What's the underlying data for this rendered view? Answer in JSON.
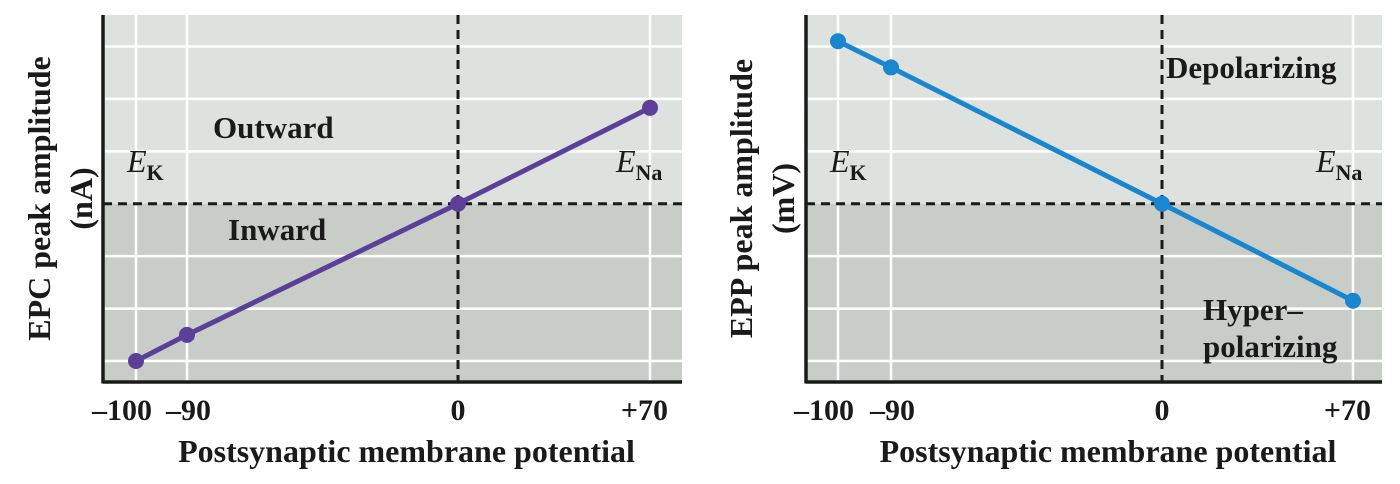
{
  "chart_data": [
    {
      "type": "line",
      "panel": "left",
      "xlabel": "Postsynaptic membrane potential",
      "ylabel_line1": "EPC peak amplitude",
      "ylabel_line2": "(nA)",
      "x_ticks": [
        {
          "value": -100,
          "label": "–100"
        },
        {
          "value": -90,
          "label": "–90"
        },
        {
          "value": 0,
          "label": "0"
        },
        {
          "value": 70,
          "label": "+70"
        }
      ],
      "ylim": [
        -3.4,
        3.6
      ],
      "grid": true,
      "series": [
        {
          "name": "EPC",
          "color": "#5b3f99",
          "x": [
            -100,
            -90,
            0,
            70
          ],
          "y": [
            -3.0,
            -2.5,
            0,
            1.83
          ]
        }
      ],
      "regions": {
        "upper_label": "Outward",
        "lower_label": "Inward"
      },
      "reversal_left": {
        "main": "E",
        "sub": "K"
      },
      "reversal_right": {
        "main": "E",
        "sub": "Na"
      }
    },
    {
      "type": "line",
      "panel": "right",
      "xlabel": "Postsynaptic membrane potential",
      "ylabel_line1": "EPP peak amplitude",
      "ylabel_line2": "(mV)",
      "x_ticks": [
        {
          "value": -100,
          "label": "–100"
        },
        {
          "value": -90,
          "label": "–90"
        },
        {
          "value": 0,
          "label": "0"
        },
        {
          "value": 70,
          "label": "+70"
        }
      ],
      "ylim": [
        -3.4,
        3.6
      ],
      "grid": true,
      "series": [
        {
          "name": "EPP",
          "color": "#1a86d0",
          "x": [
            -100,
            -90,
            0,
            70
          ],
          "y": [
            3.1,
            2.6,
            0,
            -1.85
          ]
        }
      ],
      "regions": {
        "upper_label": "Depolarizing",
        "lower_label_line1": "Hyper–",
        "lower_label_line2": "polarizing"
      },
      "reversal_left": {
        "main": "E",
        "sub": "K"
      },
      "reversal_right": {
        "main": "E",
        "sub": "Na"
      }
    }
  ],
  "colors": {
    "upper_bg": "#dde2df",
    "lower_bg": "#c9cdc8",
    "grid": "#ffffff",
    "axis": "#1a1a1a"
  }
}
